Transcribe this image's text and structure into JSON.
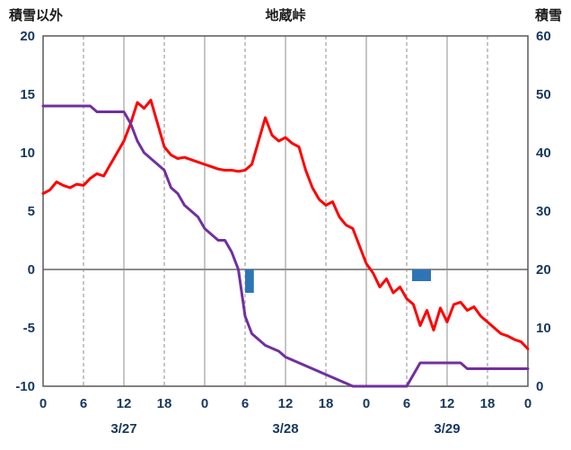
{
  "colors": {
    "red_line": "#FF0000",
    "purple_line": "#7030A0",
    "bar": "#2E75B6",
    "grid": "#8C8C8C",
    "border": "#595959",
    "tick_text": "#17375E",
    "title_text": "#1A1A1A"
  },
  "chart_data": {
    "type": "line",
    "title": "地蔵峠",
    "x_span": 72,
    "x_tick_hours": [
      0,
      6,
      12,
      18,
      24,
      30,
      36,
      42,
      48,
      54,
      60,
      66,
      72
    ],
    "x_tick_labels": [
      "0",
      "6",
      "12",
      "18",
      "0",
      "6",
      "12",
      "18",
      "0",
      "6",
      "12",
      "18",
      "0"
    ],
    "dates": [
      "3/27",
      "3/28",
      "3/29"
    ],
    "date_positions": [
      12,
      36,
      60
    ],
    "left_axis": {
      "title": "積雪以外",
      "min": -10,
      "max": 20,
      "ticks": [
        20,
        15,
        10,
        5,
        0,
        -5,
        -10
      ]
    },
    "right_axis": {
      "title": "積雪",
      "min": 0,
      "max": 60,
      "ticks": [
        60,
        50,
        40,
        30,
        20,
        10,
        0
      ]
    },
    "grid": {
      "vertical_every_hours": 6,
      "dashed_at_non_noon_midnight": true,
      "zero_line": true
    },
    "series": [
      {
        "name": "red-line",
        "axis": "left",
        "color": "#FF0000",
        "values": [
          6.5,
          6.8,
          7.5,
          7.2,
          7.0,
          7.3,
          7.2,
          7.8,
          8.2,
          8.0,
          9.0,
          10.0,
          11.0,
          12.5,
          14.3,
          13.8,
          14.5,
          12.5,
          10.5,
          9.8,
          9.5,
          9.6,
          9.4,
          9.2,
          9.0,
          8.8,
          8.6,
          8.5,
          8.5,
          8.4,
          8.5,
          9.0,
          11.0,
          13.0,
          11.5,
          11.0,
          11.3,
          10.8,
          10.5,
          8.5,
          7.0,
          6.0,
          5.5,
          5.8,
          4.5,
          3.8,
          3.5,
          2.0,
          0.5,
          -0.3,
          -1.5,
          -0.8,
          -2.0,
          -1.5,
          -2.5,
          -3.0,
          -4.8,
          -3.5,
          -5.2,
          -3.3,
          -4.5,
          -3.0,
          -2.8,
          -3.5,
          -3.2,
          -4.0,
          -4.5,
          -5.0,
          -5.5,
          -5.7,
          -6.0,
          -6.2,
          -6.8
        ]
      },
      {
        "name": "purple-line",
        "axis": "right",
        "color": "#7030A0",
        "values": [
          48,
          48,
          48,
          48,
          48,
          48,
          48,
          48,
          47,
          47,
          47,
          47,
          47,
          45,
          42,
          40,
          39,
          38,
          37,
          34,
          33,
          31,
          30,
          29,
          27,
          26,
          25,
          25,
          23,
          20,
          12,
          9,
          8,
          7,
          6.5,
          6,
          5,
          4.5,
          4,
          3.5,
          3,
          2.5,
          2,
          1.5,
          1,
          0.5,
          0,
          0,
          0,
          0,
          0,
          0,
          0,
          0,
          0,
          2,
          4,
          4,
          4,
          4,
          4,
          4,
          4,
          3,
          3,
          3,
          3,
          3,
          3,
          3,
          3,
          3,
          3
        ]
      }
    ],
    "bars": [
      {
        "x": 30,
        "width": 1.3,
        "top": 0,
        "bottom": -2
      },
      {
        "x": 54.8,
        "width": 2.8,
        "top": 0,
        "bottom": -1
      }
    ]
  }
}
